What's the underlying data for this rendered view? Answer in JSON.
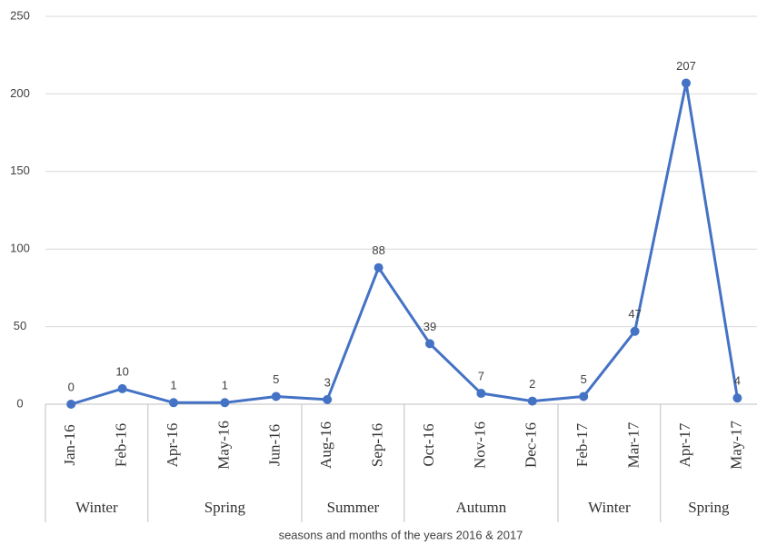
{
  "chart_data": {
    "type": "line",
    "x_label": "seasons and months of the years 2016 & 2017",
    "categories": [
      "Jan-16",
      "Feb-16",
      "Apr-16",
      "May-16",
      "Jun-16",
      "Aug-16",
      "Sep-16",
      "Oct-16",
      "Nov-16",
      "Dec-16",
      "Feb-17",
      "Mar-17",
      "Apr-17",
      "May-17"
    ],
    "groups": [
      {
        "label": "Winter",
        "span": 2
      },
      {
        "label": "Spring",
        "span": 3
      },
      {
        "label": "Summer",
        "span": 2
      },
      {
        "label": "Autumn",
        "span": 3
      },
      {
        "label": "Winter",
        "span": 2
      },
      {
        "label": "Spring",
        "span": 2
      }
    ],
    "series": [
      {
        "color": "#4472c4",
        "values": [
          0,
          10,
          1,
          1,
          5,
          3,
          88,
          39,
          7,
          2,
          5,
          47,
          207,
          4
        ]
      }
    ],
    "ylim": [
      0,
      250
    ],
    "yticks": [
      0,
      50,
      100,
      150,
      200,
      250
    ],
    "grid": true
  }
}
